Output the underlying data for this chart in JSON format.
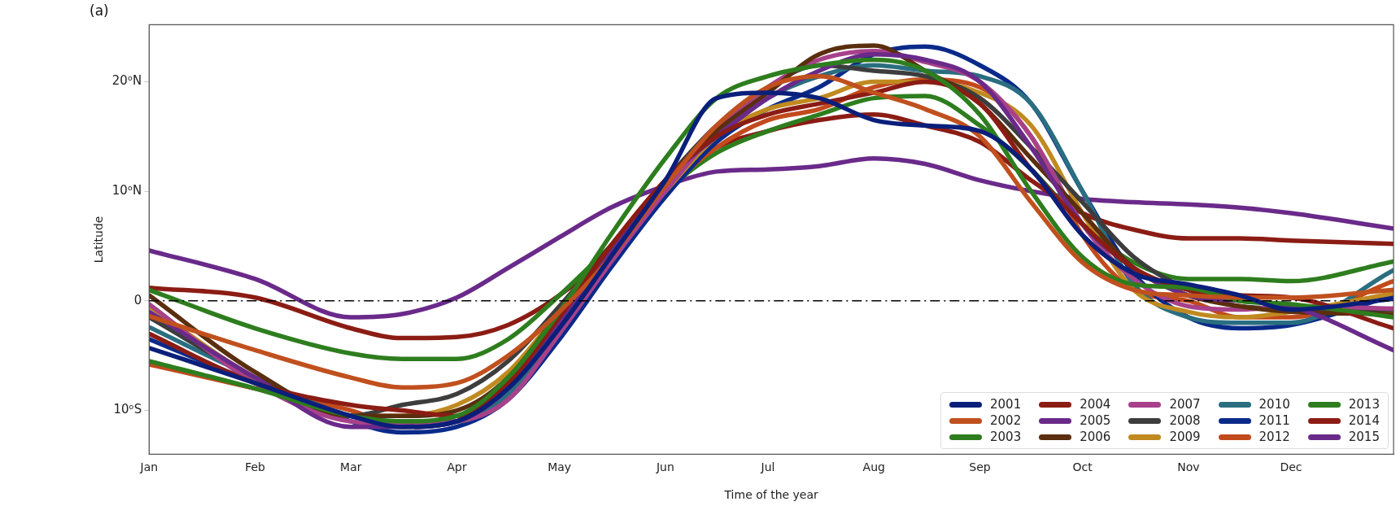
{
  "chart_data": {
    "type": "line",
    "title": "(a)",
    "xlabel": "Time of the year",
    "ylabel": "Latitude",
    "x": [
      "--01-01",
      "--02-01",
      "--03-01",
      "--03-16",
      "--04-01",
      "--04-16",
      "--05-01",
      "--05-16",
      "--06-01",
      "--06-16",
      "--07-01",
      "--07-16",
      "--08-01",
      "--08-16",
      "--09-01",
      "--09-16",
      "--10-01",
      "--10-16",
      "--11-01",
      "--11-16",
      "--12-01",
      "--12-31"
    ],
    "xlim": [
      "--01-01",
      "--12-31"
    ],
    "xticks": [
      {
        "value": "--01-01",
        "label": "Jan"
      },
      {
        "value": "--02-01",
        "label": "Feb"
      },
      {
        "value": "--03-01",
        "label": "Mar"
      },
      {
        "value": "--04-01",
        "label": "Apr"
      },
      {
        "value": "--05-01",
        "label": "May"
      },
      {
        "value": "--06-01",
        "label": "Jun"
      },
      {
        "value": "--07-01",
        "label": "Jul"
      },
      {
        "value": "--08-01",
        "label": "Aug"
      },
      {
        "value": "--09-01",
        "label": "Sep"
      },
      {
        "value": "--10-01",
        "label": "Oct"
      },
      {
        "value": "--11-01",
        "label": "Nov"
      },
      {
        "value": "--12-01",
        "label": "Dec"
      },
      {
        "value": "--12-31",
        "label": null
      }
    ],
    "ylim": [
      -14,
      25.2
    ],
    "yticks": [
      {
        "value": 20,
        "label": "20ᵒN"
      },
      {
        "value": 10,
        "label": "10ᵒN"
      },
      0,
      {
        "value": -10,
        "label": "10ᵒS"
      }
    ],
    "grid": false,
    "legend": "bottom right",
    "marker": "none",
    "line_style": "solid",
    "ref_lines": [
      {
        "axis": "y",
        "value": 0,
        "color": "#000000",
        "line_style": "dashdot"
      }
    ],
    "series": [
      {
        "name": "2001",
        "color": "#0a1f7a",
        "values": [
          -4.3,
          -7.5,
          -10.5,
          -11.5,
          -11,
          -8,
          -2.5,
          4,
          11,
          18.5,
          19,
          18.5,
          16.5,
          16,
          15.5,
          12,
          6,
          2.5,
          1.5,
          0.5,
          -0.8,
          0.2
        ]
      },
      {
        "name": "2002",
        "color": "#c0501e",
        "values": [
          -1.4,
          -4.5,
          -7,
          -7.9,
          -7.5,
          -5,
          -1,
          4,
          10.5,
          16,
          19.5,
          20.5,
          19,
          17.5,
          15,
          9,
          3.5,
          1,
          0.5,
          0.3,
          0.3,
          1
        ]
      },
      {
        "name": "2003",
        "color": "#2e7d1e",
        "values": [
          -5.5,
          -8,
          -10.5,
          -11,
          -10.5,
          -7,
          -1,
          6,
          13,
          18.5,
          20.5,
          21.5,
          22,
          21,
          17,
          10,
          4,
          1.5,
          1.2,
          0,
          -0.3,
          -1.5
        ]
      },
      {
        "name": "2004",
        "color": "#8b1c14",
        "values": [
          -3,
          -7.5,
          -9.5,
          -10,
          -10.5,
          -7.5,
          -1.5,
          5,
          11,
          15,
          17,
          18,
          19,
          20,
          18,
          12,
          7,
          3,
          1,
          0.5,
          0.3,
          -2.5
        ]
      },
      {
        "name": "2005",
        "color": "#6a2a8a",
        "values": [
          -1,
          -7,
          -11.5,
          -11.5,
          -11,
          -8,
          -2,
          4.5,
          11,
          15,
          18.5,
          21,
          22.5,
          22,
          20,
          14,
          7,
          3,
          0.5,
          0,
          -0.5,
          -4.5
        ]
      },
      {
        "name": "2006",
        "color": "#5a2e0e",
        "values": [
          0.5,
          -6.5,
          -10.5,
          -10.5,
          -10,
          -7,
          -1,
          5,
          11,
          15.5,
          19,
          22.5,
          23.3,
          21,
          18,
          13,
          8,
          3,
          0.5,
          -0.5,
          -1,
          -1.2
        ]
      },
      {
        "name": "2007",
        "color": "#a8418a",
        "values": [
          -0.3,
          -7.5,
          -11,
          -11.2,
          -11,
          -9,
          -3,
          3.5,
          10,
          15.5,
          19.5,
          22,
          22.8,
          21.8,
          20,
          15,
          7,
          2,
          -0.5,
          -0.8,
          -0.5,
          -0.7
        ]
      },
      {
        "name": "2008",
        "color": "#3d3d3d",
        "values": [
          -1.5,
          -7,
          -10.5,
          -9.5,
          -8.5,
          -5.5,
          -0.5,
          5,
          11,
          16,
          19.5,
          21.5,
          21,
          20.5,
          18.5,
          14,
          9,
          4,
          1,
          -0.5,
          -0.7,
          -0.8
        ]
      },
      {
        "name": "2009",
        "color": "#c08a20",
        "values": [
          -0.5,
          -7,
          -10.5,
          -10.5,
          -9.5,
          -6.5,
          -1,
          4.5,
          10,
          15,
          17.5,
          18.5,
          20,
          20,
          19,
          16,
          8,
          1,
          -1,
          -1.5,
          -1,
          0.7
        ]
      },
      {
        "name": "2010",
        "color": "#2a6e80",
        "values": [
          -2.4,
          -7,
          -10.5,
          -11,
          -11,
          -8.5,
          -2.5,
          4,
          10.5,
          15,
          18.5,
          20.5,
          21.5,
          21,
          20.5,
          18,
          10,
          1.5,
          -1.5,
          -2,
          -2,
          2.8
        ]
      },
      {
        "name": "2011",
        "color": "#0a2a8a",
        "values": [
          -3.5,
          -7.5,
          -11,
          -12,
          -11.5,
          -9,
          -3.5,
          3,
          9.5,
          14.5,
          17.5,
          19.5,
          22.5,
          23.2,
          21.5,
          18,
          10,
          2.5,
          -1.5,
          -2.5,
          -2.2,
          0.5
        ]
      },
      {
        "name": "2012",
        "color": "#c24a1c",
        "values": [
          -5.8,
          -8,
          -10,
          -11.5,
          -11,
          -8,
          -2,
          4,
          10,
          14,
          16.5,
          17.5,
          19.5,
          20.2,
          19.5,
          15,
          6,
          1,
          0,
          -1.5,
          -1.5,
          1.8
        ]
      },
      {
        "name": "2013",
        "color": "#2e7d1e",
        "values": [
          1,
          -2.5,
          -4.8,
          -5.3,
          -5.3,
          -3.5,
          0.5,
          5,
          10,
          13.5,
          15.5,
          17,
          18.5,
          18.7,
          16,
          12,
          7,
          3.5,
          2,
          2,
          1.8,
          3.6
        ]
      },
      {
        "name": "2014",
        "color": "#8b1c14",
        "values": [
          1.2,
          0.3,
          -2.5,
          -3.4,
          -3.3,
          -2.2,
          0.5,
          4.5,
          10.5,
          14,
          15.5,
          16.5,
          17,
          16,
          14.5,
          11,
          8,
          6.5,
          5.7,
          5.7,
          5.5,
          5.2
        ]
      },
      {
        "name": "2015",
        "color": "#6a2a8a",
        "values": [
          4.6,
          2,
          -1.5,
          -1.2,
          0.3,
          3,
          5.8,
          8.5,
          10.5,
          11.8,
          12,
          12.3,
          13,
          12.5,
          11,
          10,
          9.3,
          9,
          8.8,
          8.5,
          8,
          6.6
        ]
      }
    ]
  }
}
